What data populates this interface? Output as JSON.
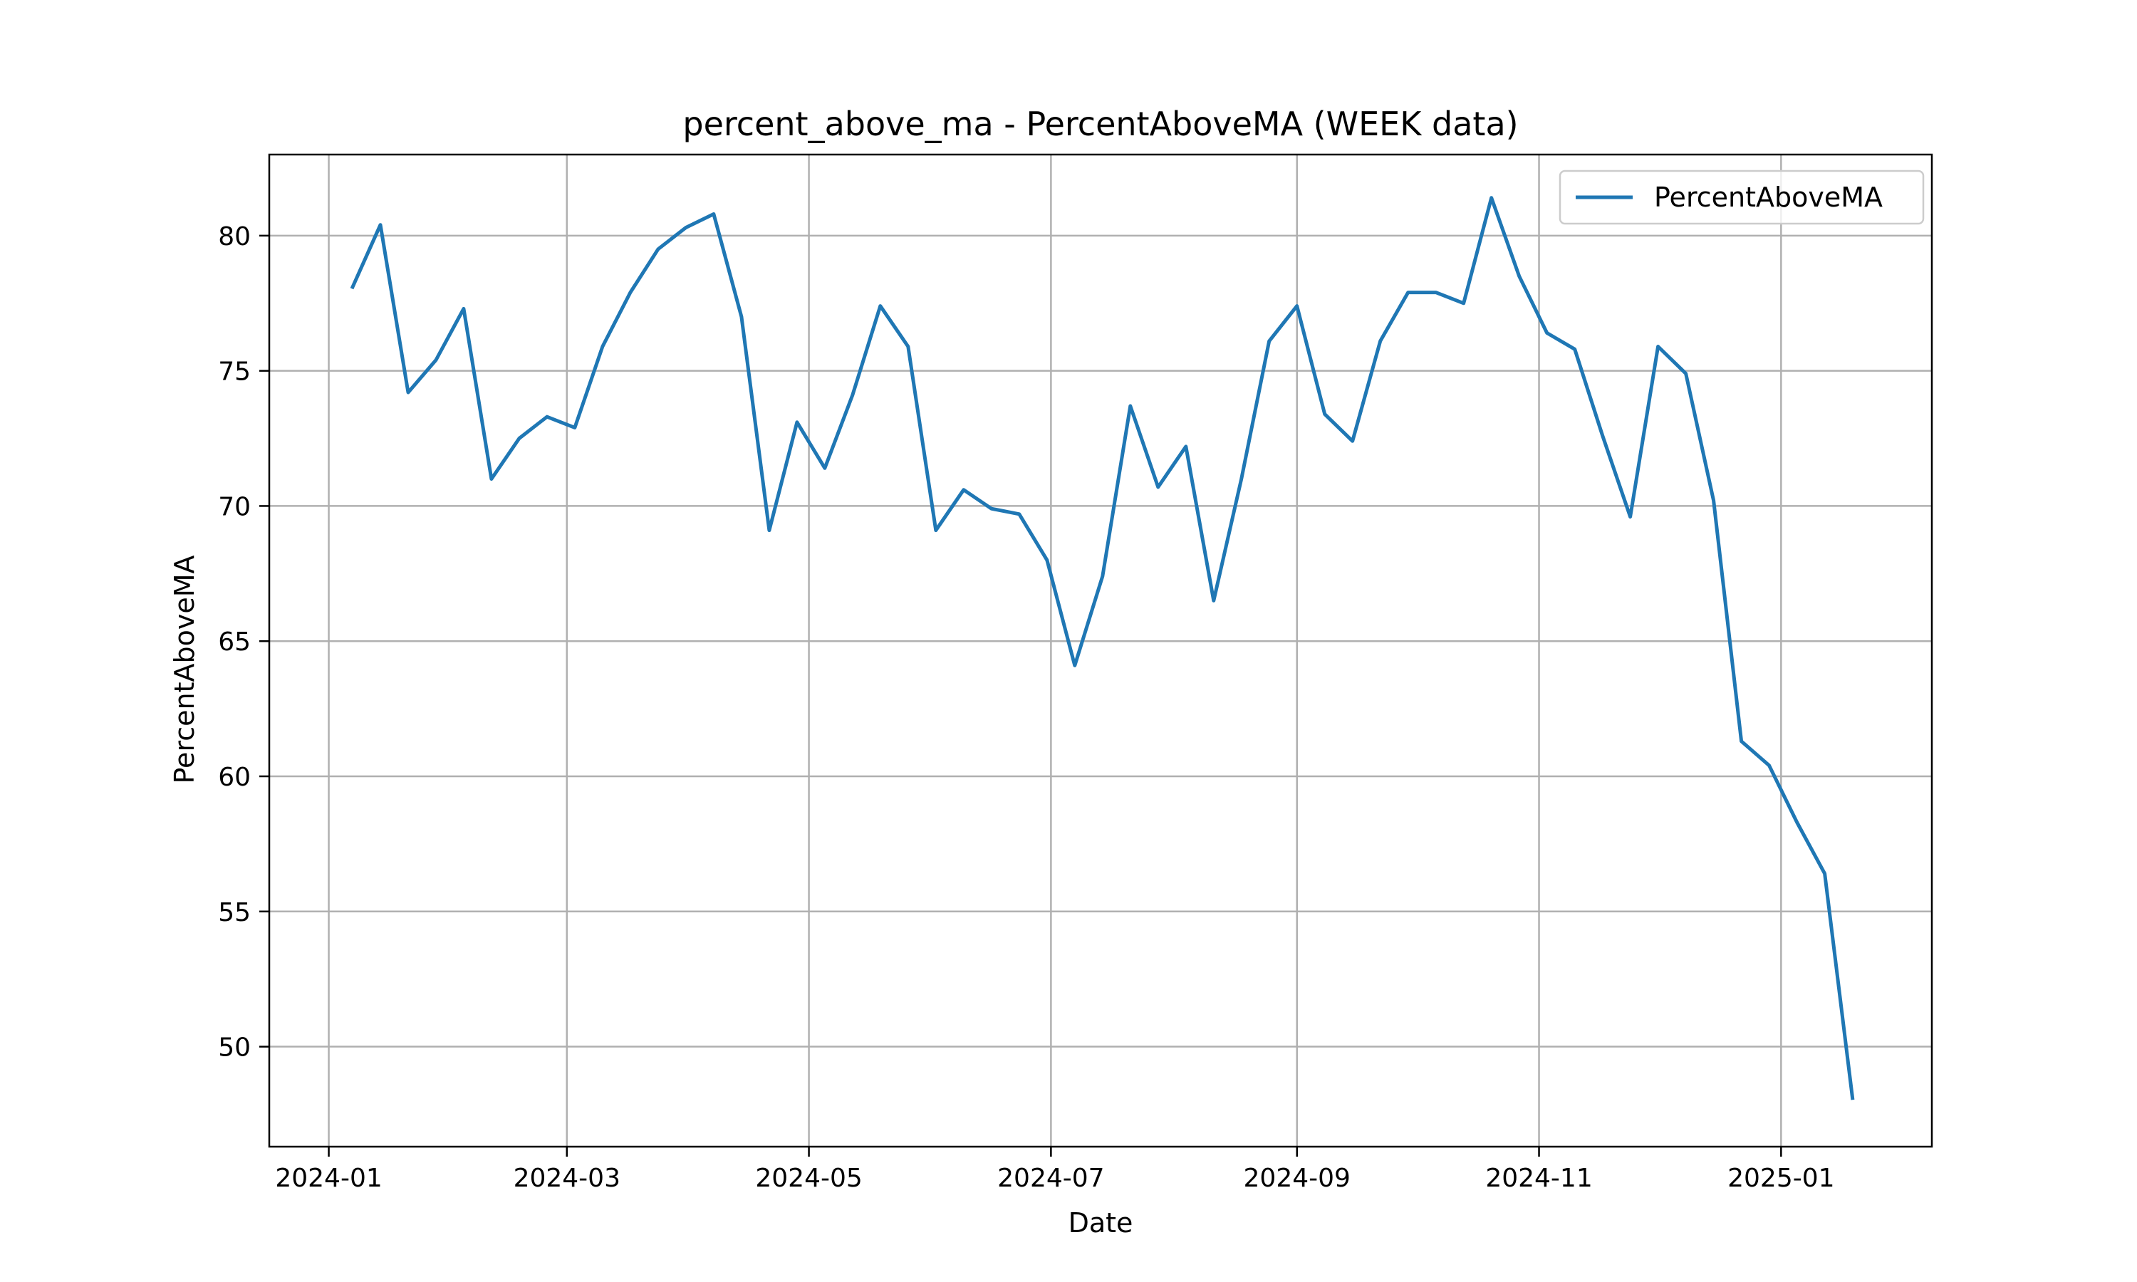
{
  "chart_data": {
    "type": "line",
    "title": "percent_above_ma - PercentAboveMA (WEEK data)",
    "xlabel": "Date",
    "ylabel": "PercentAboveMA",
    "x_ticks": [
      "2024-01",
      "2024-03",
      "2024-05",
      "2024-07",
      "2024-09",
      "2024-11",
      "2025-01"
    ],
    "y_ticks": [
      50,
      55,
      60,
      65,
      70,
      75,
      80
    ],
    "xlim": [
      "2023-12-17",
      "2025-02-08"
    ],
    "ylim": [
      46.3,
      83.0
    ],
    "grid": true,
    "legend": "top-right",
    "color": "#1f77b4",
    "series": [
      {
        "name": "PercentAboveMA",
        "x": [
          "2024-01-07",
          "2024-01-14",
          "2024-01-21",
          "2024-01-28",
          "2024-02-04",
          "2024-02-11",
          "2024-02-18",
          "2024-02-25",
          "2024-03-03",
          "2024-03-10",
          "2024-03-17",
          "2024-03-24",
          "2024-03-31",
          "2024-04-07",
          "2024-04-14",
          "2024-04-21",
          "2024-04-28",
          "2024-05-05",
          "2024-05-12",
          "2024-05-19",
          "2024-05-26",
          "2024-06-02",
          "2024-06-09",
          "2024-06-16",
          "2024-06-23",
          "2024-06-30",
          "2024-07-07",
          "2024-07-14",
          "2024-07-21",
          "2024-07-28",
          "2024-08-04",
          "2024-08-11",
          "2024-08-18",
          "2024-08-25",
          "2024-09-01",
          "2024-09-08",
          "2024-09-15",
          "2024-09-22",
          "2024-09-29",
          "2024-10-06",
          "2024-10-13",
          "2024-10-20",
          "2024-10-27",
          "2024-11-03",
          "2024-11-10",
          "2024-11-17",
          "2024-11-24",
          "2024-12-01",
          "2024-12-08",
          "2024-12-15",
          "2024-12-22",
          "2024-12-29",
          "2025-01-05",
          "2025-01-12",
          "2025-01-19"
        ],
        "values": [
          78.1,
          80.4,
          74.2,
          75.4,
          77.3,
          71.0,
          72.5,
          73.3,
          72.9,
          75.9,
          77.9,
          79.5,
          80.3,
          80.8,
          77.0,
          69.1,
          73.1,
          71.4,
          74.1,
          77.4,
          75.9,
          69.1,
          70.6,
          69.9,
          69.7,
          68.0,
          64.1,
          67.4,
          73.7,
          70.7,
          72.2,
          66.5,
          71.0,
          76.1,
          77.4,
          73.4,
          72.4,
          76.1,
          77.9,
          77.9,
          77.5,
          81.4,
          78.5,
          76.4,
          75.8,
          72.6,
          69.6,
          75.9,
          74.9,
          70.2,
          61.3,
          60.4,
          58.3,
          56.4,
          48.1
        ]
      }
    ]
  }
}
